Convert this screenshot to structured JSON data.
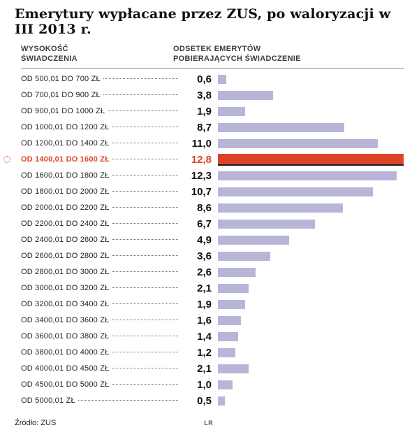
{
  "title": "Emerytury wypłacane przez ZUS, po waloryzacji w III 2013 r.",
  "columns": {
    "left_line1": "WYSOKOŚĆ",
    "left_line2": "ŚWIADCZENIA",
    "right_line1": "ODSETEK EMERYTÓW",
    "right_line2": "POBIERAJĄCYCH ŚWIADCZENIE"
  },
  "footer": {
    "source": "Źródło: ZUS",
    "credit": "LR"
  },
  "colors": {
    "bar": "#b8b6d8",
    "highlight": "#dd4327"
  },
  "chart_data": {
    "type": "bar",
    "orientation": "horizontal",
    "title": "Emerytury wypłacane przez ZUS, po waloryzacji w III 2013 r.",
    "xlabel": "ODSETEK EMERYTÓW POBIERAJĄCYCH ŚWIADCZENIE",
    "ylabel": "WYSOKOŚĆ ŚWIADCZENIA",
    "xlim": [
      0,
      12.8
    ],
    "grid": false,
    "legend": false,
    "highlight_index": 5,
    "categories": [
      "OD 500,01 DO 700 ZŁ",
      "OD 700,01 DO 900 ZŁ",
      "OD 900,01 DO 1000 ZŁ",
      "OD 1000,01 DO 1200 ZŁ",
      "OD 1200,01 DO 1400 ZŁ",
      "OD 1400,01 DO 1600 ZŁ",
      "OD 1600,01 DO 1800 ZŁ",
      "OD 1800,01 DO 2000 ZŁ",
      "OD 2000,01 DO 2200 ZŁ",
      "OD 2200,01 DO 2400 ZŁ",
      "OD 2400,01 DO 2600 ZŁ",
      "OD 2600,01 DO 2800 ZŁ",
      "OD 2800,01 DO 3000 ZŁ",
      "OD 3000,01 DO 3200 ZŁ",
      "OD 3200,01 DO 3400 ZŁ",
      "OD 3400,01 DO 3600 ZŁ",
      "OD 3600,01 DO 3800 ZŁ",
      "OD 3800,01 DO 4000 ZŁ",
      "OD 4000,01 DO 4500 ZŁ",
      "OD 4500,01 DO 5000 ZŁ",
      "OD 5000,01 ZŁ"
    ],
    "values": [
      0.6,
      3.8,
      1.9,
      8.7,
      11.0,
      12.8,
      12.3,
      10.7,
      8.6,
      6.7,
      4.9,
      3.6,
      2.6,
      2.1,
      1.9,
      1.6,
      1.4,
      1.2,
      2.1,
      1.0,
      0.5
    ],
    "value_labels": [
      "0,6",
      "3,8",
      "1,9",
      "8,7",
      "11,0",
      "12,8",
      "12,3",
      "10,7",
      "8,6",
      "6,7",
      "4,9",
      "3,6",
      "2,6",
      "2,1",
      "1,9",
      "1,6",
      "1,4",
      "1,2",
      "2,1",
      "1,0",
      "0,5"
    ]
  }
}
